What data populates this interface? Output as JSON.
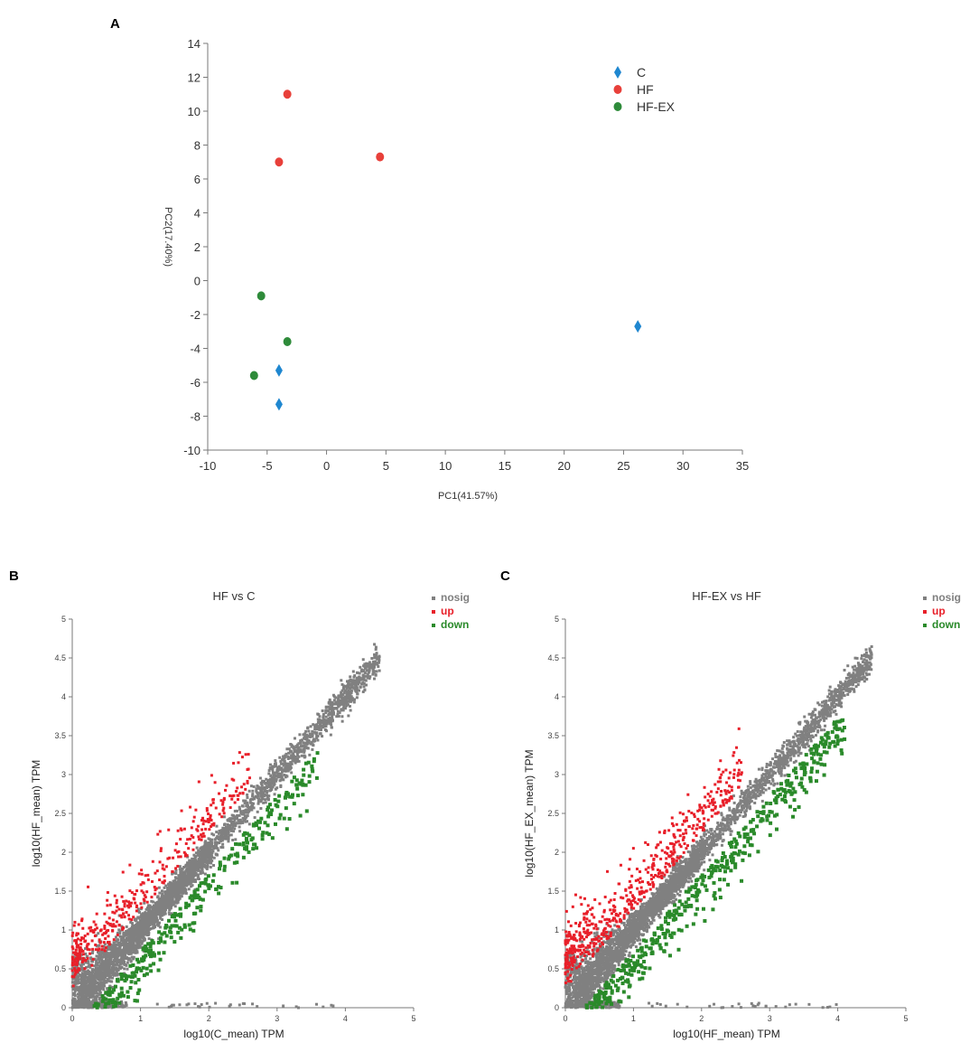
{
  "figure": {
    "panel_labels": [
      "A",
      "B",
      "C"
    ]
  },
  "chart_data": [
    {
      "type": "scatter",
      "panel": "A",
      "title": "",
      "xlabel": "PC1(41.57%)",
      "ylabel": "PC2(17.40%)",
      "xlim": [
        -10,
        35
      ],
      "ylim": [
        -10,
        14
      ],
      "xticks": [
        -10,
        -5,
        0,
        5,
        10,
        15,
        20,
        25,
        30,
        35
      ],
      "yticks": [
        -10,
        -8,
        -6,
        -4,
        -2,
        0,
        2,
        4,
        6,
        8,
        10,
        12,
        14
      ],
      "legend_position": "top-right",
      "series": [
        {
          "name": "C",
          "color": "#1f87d0",
          "marker": "diamond",
          "points": [
            [
              -4,
              -5.3
            ],
            [
              -4,
              -7.3
            ],
            [
              26.2,
              -2.7
            ]
          ]
        },
        {
          "name": "HF",
          "color": "#e8403a",
          "marker": "circle",
          "points": [
            [
              -3.3,
              11
            ],
            [
              -4,
              7
            ],
            [
              4.5,
              7.3
            ]
          ]
        },
        {
          "name": "HF-EX",
          "color": "#2e8b3a",
          "marker": "circle",
          "points": [
            [
              -5.5,
              -0.9
            ],
            [
              -3.3,
              -3.6
            ],
            [
              -6.1,
              -5.6
            ]
          ]
        }
      ]
    },
    {
      "type": "scatter",
      "panel": "B",
      "title": "HF vs C",
      "xlabel": "log10(C_mean) TPM",
      "ylabel": "log10(HF_mean) TPM",
      "xlim": [
        0,
        5
      ],
      "ylim": [
        0,
        5
      ],
      "xticks": [
        "0",
        "1",
        "2",
        "3",
        "4",
        "5"
      ],
      "yticks": [
        "0",
        "0.5",
        "1",
        "1.5",
        "2",
        "2.5",
        "3",
        "3.5",
        "4",
        "4.5",
        "5"
      ],
      "legend_position": "top-right",
      "series": [
        {
          "name": "nosig",
          "color": "#808080"
        },
        {
          "name": "up",
          "color": "#e8202a"
        },
        {
          "name": "down",
          "color": "#2a8a2a"
        }
      ]
    },
    {
      "type": "scatter",
      "panel": "C",
      "title": "HF-EX vs HF",
      "xlabel": "log10(HF_mean) TPM",
      "ylabel": "log10(HF_EX_mean) TPM",
      "xlim": [
        0,
        5
      ],
      "ylim": [
        0,
        5
      ],
      "xticks": [
        "0",
        "1",
        "2",
        "3",
        "4",
        "5"
      ],
      "yticks": [
        "0",
        "0.5",
        "1",
        "1.5",
        "2",
        "2.5",
        "3",
        "3.5",
        "4",
        "4.5",
        "5"
      ],
      "legend_position": "top-right",
      "series": [
        {
          "name": "nosig",
          "color": "#808080"
        },
        {
          "name": "up",
          "color": "#e8202a"
        },
        {
          "name": "down",
          "color": "#2a8a2a"
        }
      ]
    }
  ]
}
